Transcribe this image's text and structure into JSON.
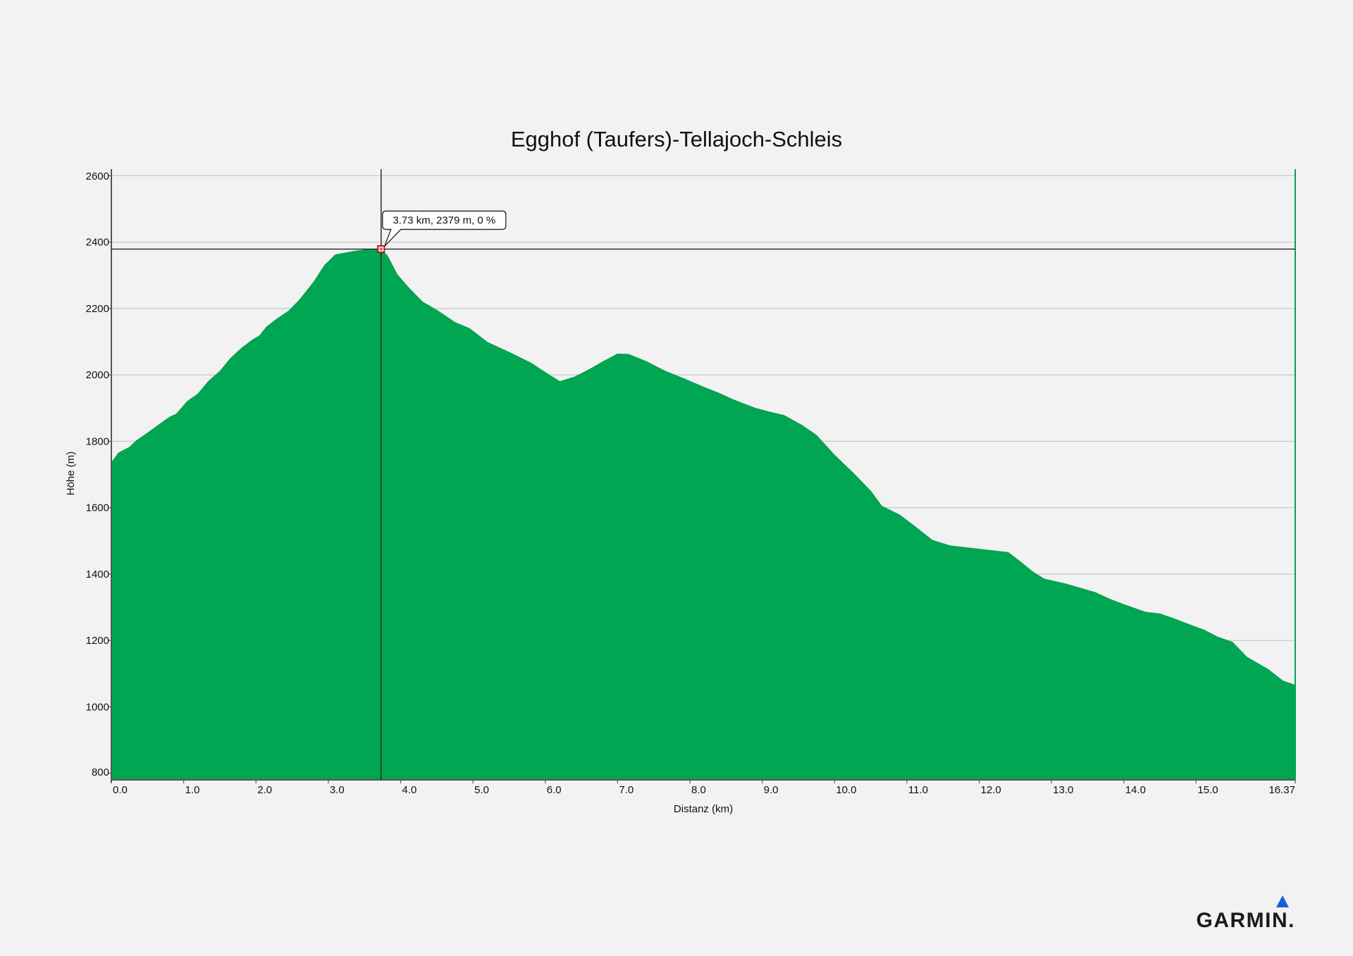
{
  "brand": {
    "name": "GARMIN.",
    "logo_icon": "garmin-triangle-icon",
    "accent_color": "#1a5fd6"
  },
  "colors": {
    "fill": "#00a651",
    "background": "#f2f2f2",
    "grid": "#c8c8c8",
    "marker": "#c0141b"
  },
  "chart_data": {
    "type": "area",
    "title": "Egghof (Taufers)-Tellajoch-Schleis",
    "xlabel": "Distanz (km)",
    "ylabel": "Höhe (m)",
    "xlim": [
      0,
      16.37
    ],
    "ylim": [
      780,
      2620
    ],
    "x_ticks": [
      "0.0",
      "1.0",
      "2.0",
      "3.0",
      "4.0",
      "5.0",
      "6.0",
      "7.0",
      "8.0",
      "9.0",
      "10.0",
      "11.0",
      "12.0",
      "13.0",
      "14.0",
      "15.0",
      "16.37"
    ],
    "y_ticks": [
      "2600",
      "2400",
      "2200",
      "2000",
      "1800",
      "1600",
      "1400",
      "1200",
      "1000",
      "800"
    ],
    "grid": true,
    "series": [
      {
        "x": [
          0.0,
          0.1,
          0.25,
          0.35,
          0.5,
          0.8,
          0.9,
          1.05,
          1.2,
          1.35,
          1.5,
          1.65,
          1.8,
          1.95,
          2.05,
          2.15,
          2.3,
          2.45,
          2.6,
          2.8,
          2.95,
          3.1,
          3.35,
          3.55,
          3.73,
          3.82,
          3.95,
          4.1,
          4.3,
          4.5,
          4.75,
          4.95,
          5.2,
          5.5,
          5.8,
          6.05,
          6.2,
          6.4,
          6.6,
          6.8,
          7.0,
          7.15,
          7.4,
          7.65,
          7.9,
          8.2,
          8.4,
          8.6,
          8.9,
          9.1,
          9.3,
          9.55,
          9.75,
          10.0,
          10.25,
          10.5,
          10.65,
          10.9,
          11.1,
          11.35,
          11.6,
          12.0,
          12.4,
          12.55,
          12.75,
          12.9,
          13.2,
          13.6,
          13.8,
          14.0,
          14.3,
          14.5,
          14.7,
          14.9,
          15.1,
          15.3,
          15.5,
          15.7,
          16.0,
          16.2,
          16.37
        ],
        "y": [
          1735,
          1765,
          1782,
          1802,
          1825,
          1872,
          1882,
          1920,
          1943,
          1982,
          2010,
          2050,
          2080,
          2105,
          2118,
          2145,
          2170,
          2192,
          2225,
          2280,
          2330,
          2362,
          2372,
          2378,
          2379,
          2358,
          2303,
          2265,
          2220,
          2195,
          2158,
          2140,
          2098,
          2068,
          2036,
          2000,
          1980,
          1993,
          2015,
          2040,
          2063,
          2062,
          2040,
          2012,
          1990,
          1962,
          1945,
          1925,
          1900,
          1888,
          1878,
          1848,
          1818,
          1758,
          1706,
          1650,
          1605,
          1578,
          1545,
          1502,
          1485,
          1475,
          1465,
          1440,
          1405,
          1385,
          1370,
          1345,
          1325,
          1308,
          1285,
          1280,
          1265,
          1248,
          1232,
          1210,
          1195,
          1150,
          1112,
          1078,
          1065
        ]
      }
    ],
    "cursor": {
      "x": 3.73,
      "y": 2379,
      "label": "3.73 km, 2379 m, 0 %"
    }
  }
}
